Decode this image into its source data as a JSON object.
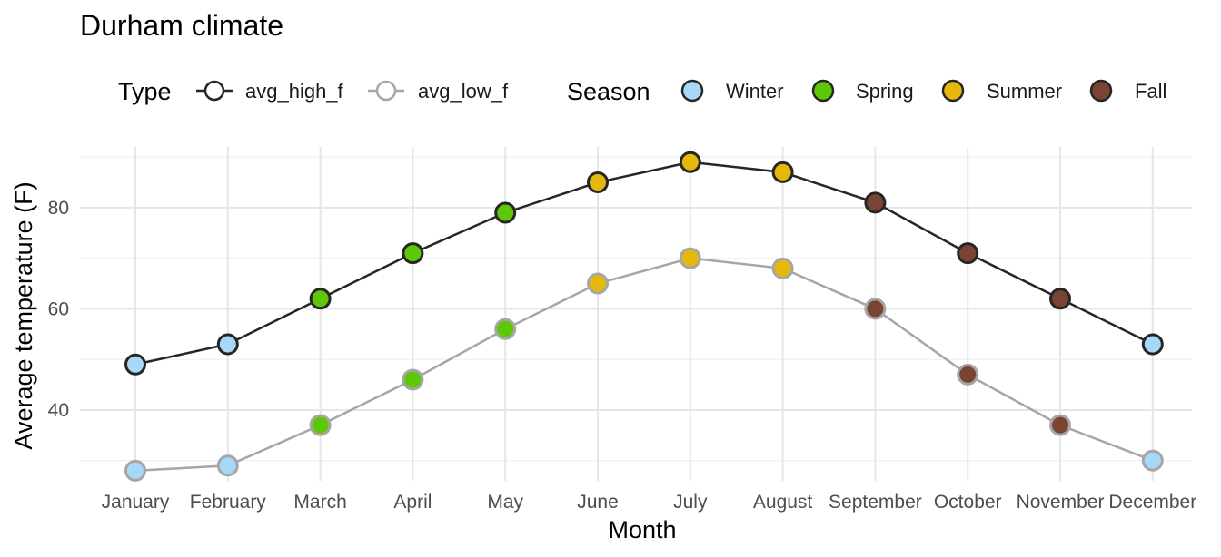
{
  "colors": {
    "high_line": "#262626",
    "low_line": "#a6a6a6",
    "grid_major": "#e6e6e6",
    "grid_minor": "#f2f2f2"
  },
  "legend": {
    "type_title": "Type",
    "type_items": [
      {
        "label": "avg_high_f",
        "color": "#262626"
      },
      {
        "label": "avg_low_f",
        "color": "#a6a6a6"
      }
    ],
    "season_title": "Season",
    "season_items": [
      {
        "label": "Winter",
        "color": "#a6d8f7"
      },
      {
        "label": "Spring",
        "color": "#5cc807"
      },
      {
        "label": "Summer",
        "color": "#e6b80c"
      },
      {
        "label": "Fall",
        "color": "#7a4433"
      }
    ]
  },
  "chart_data": {
    "type": "line",
    "title": "Durham climate",
    "xlabel": "Month",
    "ylabel": "Average temperature (F)",
    "categories": [
      "January",
      "February",
      "March",
      "April",
      "May",
      "June",
      "July",
      "August",
      "September",
      "October",
      "November",
      "December"
    ],
    "ylim": [
      26,
      92
    ],
    "yticks": [
      40,
      60,
      80
    ],
    "grid": true,
    "legend_position": "top",
    "season_colors": {
      "Winter": "#a6d8f7",
      "Spring": "#5cc807",
      "Summer": "#e6b80c",
      "Fall": "#7a4433"
    },
    "seasons": [
      "Winter",
      "Winter",
      "Spring",
      "Spring",
      "Spring",
      "Summer",
      "Summer",
      "Summer",
      "Fall",
      "Fall",
      "Fall",
      "Winter"
    ],
    "series": [
      {
        "name": "avg_high_f",
        "color": "#262626",
        "values": [
          49,
          53,
          62,
          71,
          79,
          85,
          89,
          87,
          81,
          71,
          62,
          53
        ]
      },
      {
        "name": "avg_low_f",
        "color": "#a6a6a6",
        "values": [
          28,
          29,
          37,
          46,
          56,
          65,
          70,
          68,
          60,
          47,
          37,
          30
        ]
      }
    ]
  }
}
